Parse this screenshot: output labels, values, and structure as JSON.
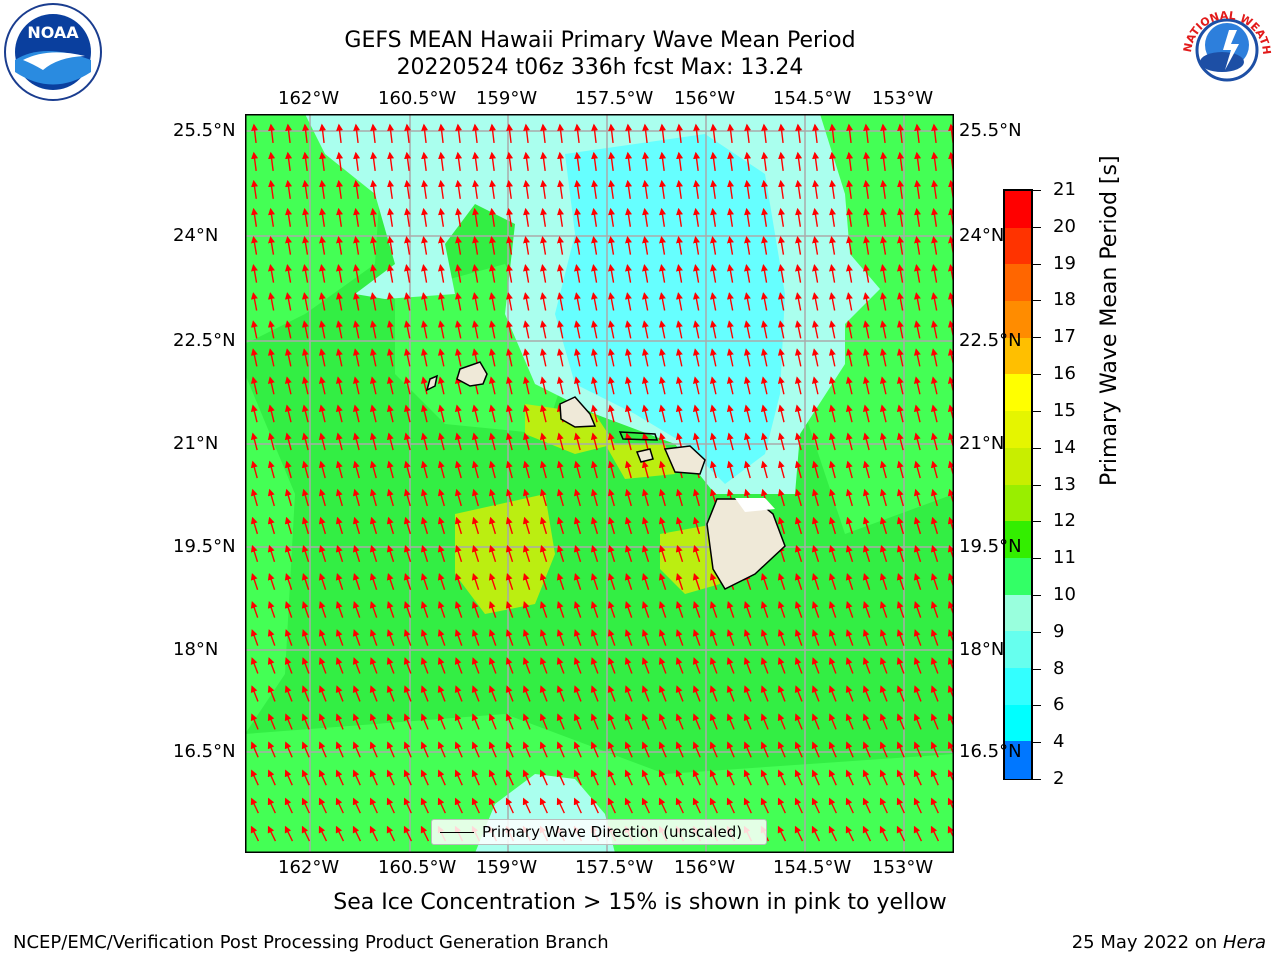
{
  "title_line1": "GEFS MEAN Hawaii Primary Wave Mean Period",
  "title_line2": "20220524 t06z 336h fcst   Max: 13.24",
  "noaa_logo_text": "NOAA",
  "nws_logo_text": "NATIONAL WEATHER SERVICE",
  "lon_ticks": [
    "162°W",
    "160.5°W",
    "159°W",
    "157.5°W",
    "156°W",
    "154.5°W",
    "153°W"
  ],
  "lat_ticks": [
    "25.5°N",
    "24°N",
    "22.5°N",
    "21°N",
    "19.5°N",
    "18°N",
    "16.5°N"
  ],
  "legend_text": "Primary Wave Direction (unscaled)",
  "colorbar": {
    "label": "Primary Wave Mean Period [s]",
    "ticks": [
      "21",
      "20",
      "19",
      "18",
      "17",
      "16",
      "15",
      "14",
      "13",
      "12",
      "11",
      "10",
      "9",
      "8",
      "6",
      "4",
      "2"
    ],
    "colors": [
      "#ff0000",
      "#ff3300",
      "#ff6600",
      "#ff8c00",
      "#ffbf00",
      "#ffff00",
      "#e5f500",
      "#c8ee00",
      "#99ee00",
      "#33ee00",
      "#33ff66",
      "#99ffdd",
      "#66ffee",
      "#33ffff",
      "#00ffff",
      "#0077ff",
      "#0000ff"
    ]
  },
  "map_colors": {
    "green": "#33ee44",
    "light_green": "#44ff55",
    "pale_cyan": "#aaffee",
    "cyan": "#66ffff",
    "yellow_green": "#bbee11",
    "land": "#efe9d8",
    "arrow": "#ff0000",
    "grid": "#aaaaaa"
  },
  "sea_ice_note": "Sea Ice Concentration > 15% is shown in pink to yellow",
  "footer_left": "NCEP/EMC/Verification Post Processing Product Generation Branch",
  "footer_right_date": "25 May 2022 on ",
  "footer_right_host": "Hera"
}
